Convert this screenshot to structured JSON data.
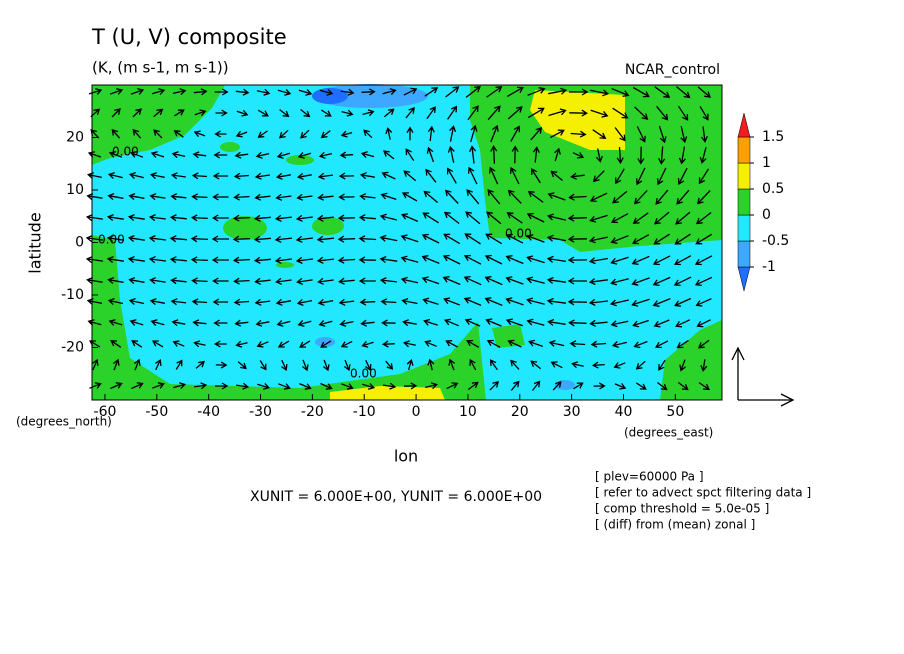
{
  "chart_data": {
    "type": "vector",
    "title": "T (U, V) composite",
    "subtitle": "(K, (m s-1, m s-1))",
    "experiment": "NCAR_control",
    "x_label": "lon",
    "y_label": "latitude",
    "x_units": "(degrees_east)",
    "y_units": "(degrees_north)",
    "xlim": [
      -62.5,
      59
    ],
    "xticks": [
      -60,
      -50,
      -40,
      -30,
      -20,
      -10,
      0,
      10,
      20,
      30,
      40,
      50
    ],
    "ylim": [
      -30,
      30
    ],
    "yticks": [
      -20,
      -10,
      0,
      10,
      20
    ],
    "contour_labels": [
      "0.00",
      "0.00",
      "0.00",
      "0.00"
    ],
    "colorbar": {
      "levels": [
        -1,
        -0.5,
        0,
        0.5,
        1,
        1.5
      ],
      "colors": [
        "#1e6eff",
        "#3ca8ff",
        "#22e8ff",
        "#2ad22a",
        "#f5f000",
        "#ffa000",
        "#f01e1e"
      ]
    },
    "unit_note": "XUNIT = 6.000E+00, YUNIT = 6.000E+00",
    "notes": [
      "[ plev=60000 Pa ]",
      "[ refer to advect spct filtering data ]",
      "[ comp threshold = 5.0e-05 ]",
      "[ (diff) from (mean) zonal ]"
    ]
  }
}
